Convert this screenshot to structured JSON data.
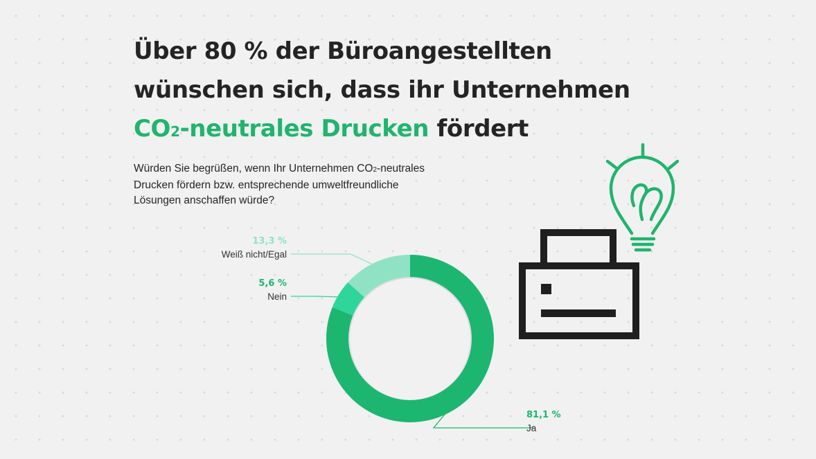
{
  "headline": {
    "line1": "Über 80 % der Büroangestellten",
    "line2": "wünschen sich, dass ihr Unternehmen",
    "accent_pre": "CO",
    "accent_sub": "2",
    "accent_post": "-neutrales Drucken",
    "tail": " fördert"
  },
  "question": {
    "part1": "Würden Sie begrüßen, wenn Ihr Unternehmen CO",
    "sub": "2",
    "part2": "-neutrales Drucken fördern bzw. entsprechende umweltfreundliche Lösungen anschaffen würde?"
  },
  "colors": {
    "accent": "#20b46e",
    "ja": "#1db671",
    "nein": "#2fd59a",
    "egal": "#8fe3c4",
    "text": "#242424",
    "illustration": "#1f1f1f",
    "bulb": "#20b46e"
  },
  "illustration": {
    "printer": "printer-icon",
    "bulb": "light-bulb-heart-icon"
  },
  "chart_data": {
    "type": "pie",
    "variant": "donut",
    "categories": [
      "Ja",
      "Nein",
      "Weiß nicht/Egal"
    ],
    "values": [
      81.1,
      5.6,
      13.3
    ],
    "labels": [
      "81,1 %",
      "5,6 %",
      "13,3 %"
    ],
    "colors": [
      "#1db671",
      "#2fd59a",
      "#8fe3c4"
    ],
    "title": "",
    "legend": "none"
  }
}
